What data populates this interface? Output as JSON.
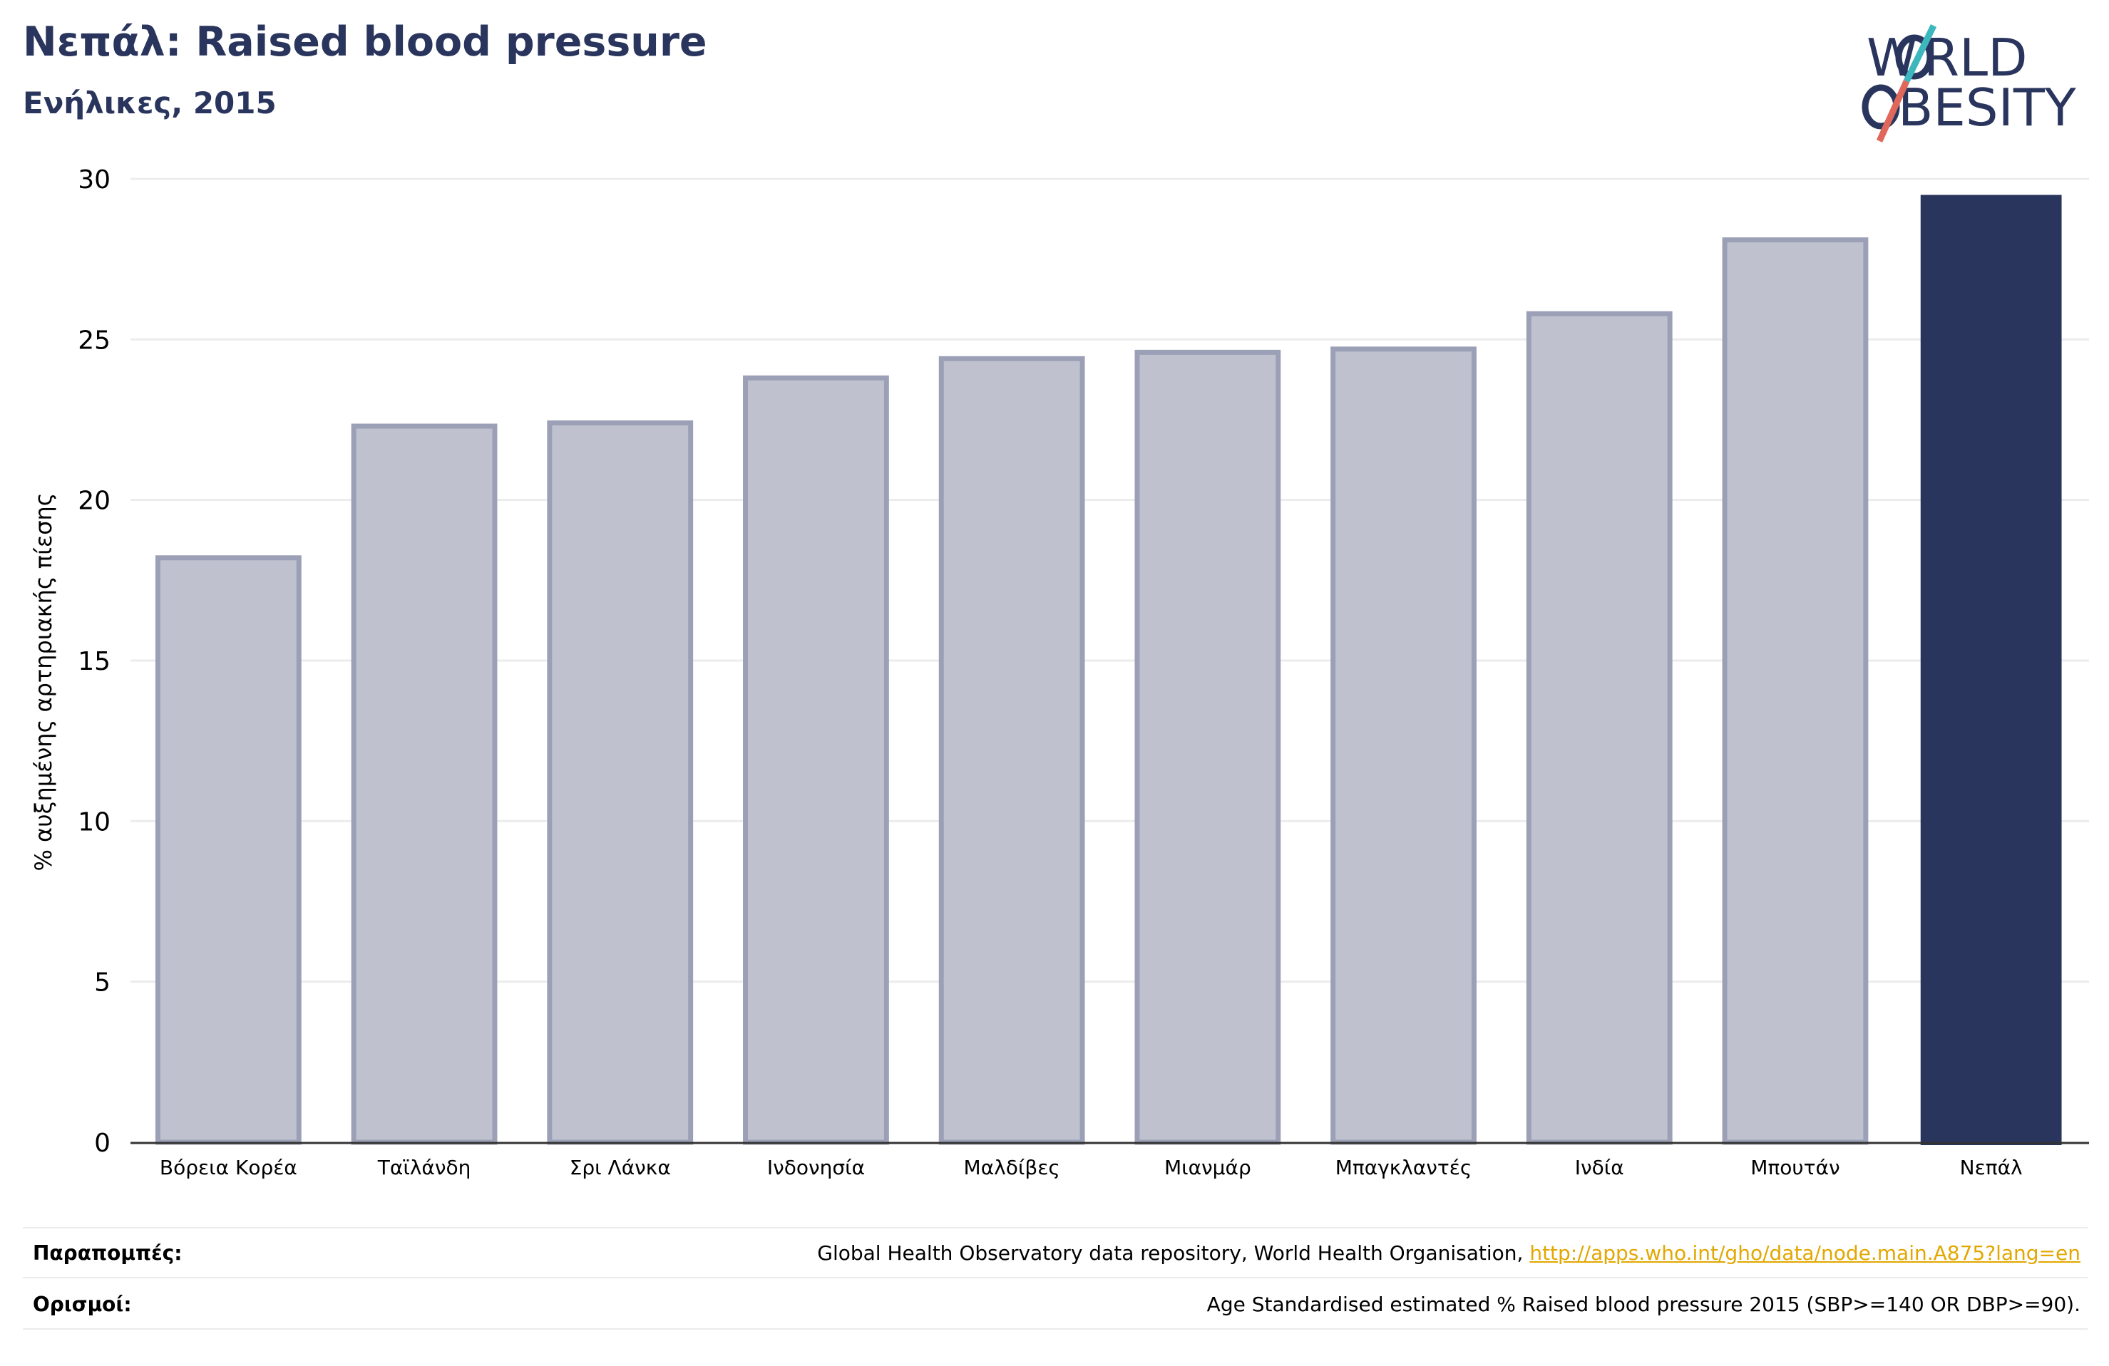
{
  "header": {
    "title": "Νεπάλ: Raised blood pressure",
    "subtitle": "Ενήλικες, 2015"
  },
  "logo": {
    "line1": "WORLD",
    "line2": "OBESITY"
  },
  "chart_data": {
    "type": "bar",
    "title": "Νεπάλ: Raised blood pressure",
    "subtitle": "Ενήλικες, 2015",
    "ylabel": "% αυξημένης αρτηριακής πίεσης",
    "xlabel": "",
    "ylim": [
      0,
      30
    ],
    "yticks": [
      0,
      5,
      10,
      15,
      20,
      25,
      30
    ],
    "grid": true,
    "categories": [
      "Βόρεια Κορέα",
      "Ταϊλάνδη",
      "Σρι Λάνκα",
      "Ινδονησία",
      "Μαλδίβες",
      "Μιανμάρ",
      "Μπαγκλαντές",
      "Ινδία",
      "Μπουτάν",
      "Νεπάλ"
    ],
    "values": [
      18.2,
      22.3,
      22.4,
      23.8,
      24.4,
      24.6,
      24.7,
      25.8,
      28.1,
      29.5
    ],
    "highlight": "Νεπάλ",
    "colors": {
      "bar": "#bfc2ce",
      "bar_border": "#9ca0b6",
      "highlight": "#2a355d",
      "grid": "#ececec",
      "axis": "#333333"
    }
  },
  "footer": {
    "sources_label": "Παραπομπές:",
    "sources_text": "Global Health Observatory data repository, World Health Organisation, ",
    "sources_link": "http://apps.who.int/gho/data/node.main.A875?lang=en",
    "definitions_label": "Ορισμοί:",
    "definitions_text": "Age Standardised estimated % Raised blood pressure 2015 (SBP>=140 OR DBP>=90)."
  }
}
